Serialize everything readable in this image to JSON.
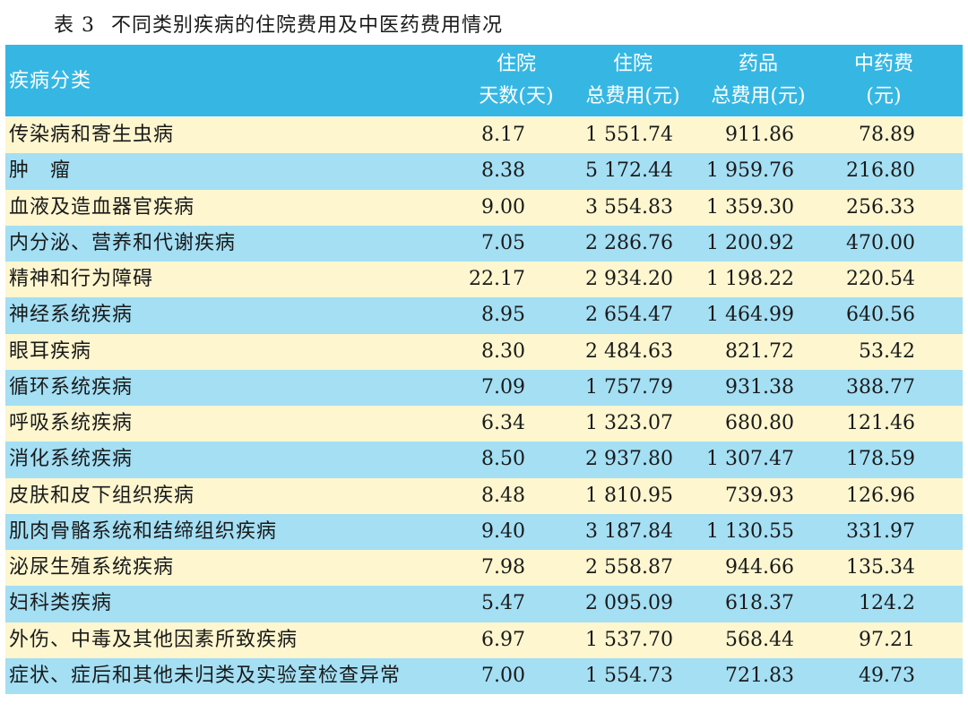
{
  "caption": {
    "number": "表 3",
    "title": "不同类别疾病的住院费用及中医药费用情况"
  },
  "header": {
    "first": "疾病分类",
    "cols": [
      {
        "line1": "住院",
        "line2": "天数(天)"
      },
      {
        "line1": "住院",
        "line2": "总费用(元)"
      },
      {
        "line1": "药品",
        "line2": "总费用(元)"
      },
      {
        "line1": "中药费",
        "line2": "(元)"
      }
    ]
  },
  "rows": [
    [
      "传染病和寄生虫病",
      "8.17",
      "1 551.74",
      "911.86",
      "78.89"
    ],
    [
      "肿　瘤",
      "8.38",
      "5 172.44",
      "1 959.76",
      "216.80"
    ],
    [
      "血液及造血器官疾病",
      "9.00",
      "3 554.83",
      "1 359.30",
      "256.33"
    ],
    [
      "内分泌、营养和代谢疾病",
      "7.05",
      "2 286.76",
      "1 200.92",
      "470.00"
    ],
    [
      "精神和行为障碍",
      "22.17",
      "2 934.20",
      "1 198.22",
      "220.54"
    ],
    [
      "神经系统疾病",
      "8.95",
      "2 654.47",
      "1 464.99",
      "640.56"
    ],
    [
      "眼耳疾病",
      "8.30",
      "2 484.63",
      "821.72",
      "53.42"
    ],
    [
      "循环系统疾病",
      "7.09",
      "1 757.79",
      "931.38",
      "388.77"
    ],
    [
      "呼吸系统疾病",
      "6.34",
      "1 323.07",
      "680.80",
      "121.46"
    ],
    [
      "消化系统疾病",
      "8.50",
      "2 937.80",
      "1 307.47",
      "178.59"
    ],
    [
      "皮肤和皮下组织疾病",
      "8.48",
      "1 810.95",
      "739.93",
      "126.96"
    ],
    [
      "肌肉骨骼系统和结缔组织疾病",
      "9.40",
      "3 187.84",
      "1 130.55",
      "331.97"
    ],
    [
      "泌尿生殖系统疾病",
      "7.98",
      "2 558.87",
      "944.66",
      "135.34"
    ],
    [
      "妇科类疾病",
      "5.47",
      "2 095.09",
      "618.37",
      "124.2"
    ],
    [
      "外伤、中毒及其他因素所致疾病",
      "6.97",
      "1 537.70",
      "568.44",
      "97.21"
    ],
    [
      "症状、症后和其他未归类及实验室检查异常",
      "7.00",
      "1 554.73",
      "721.83",
      "49.73"
    ]
  ],
  "colors": {
    "header_bg": "#36b7e3",
    "row_odd": "#fdf6cf",
    "row_even": "#a4dff4"
  }
}
